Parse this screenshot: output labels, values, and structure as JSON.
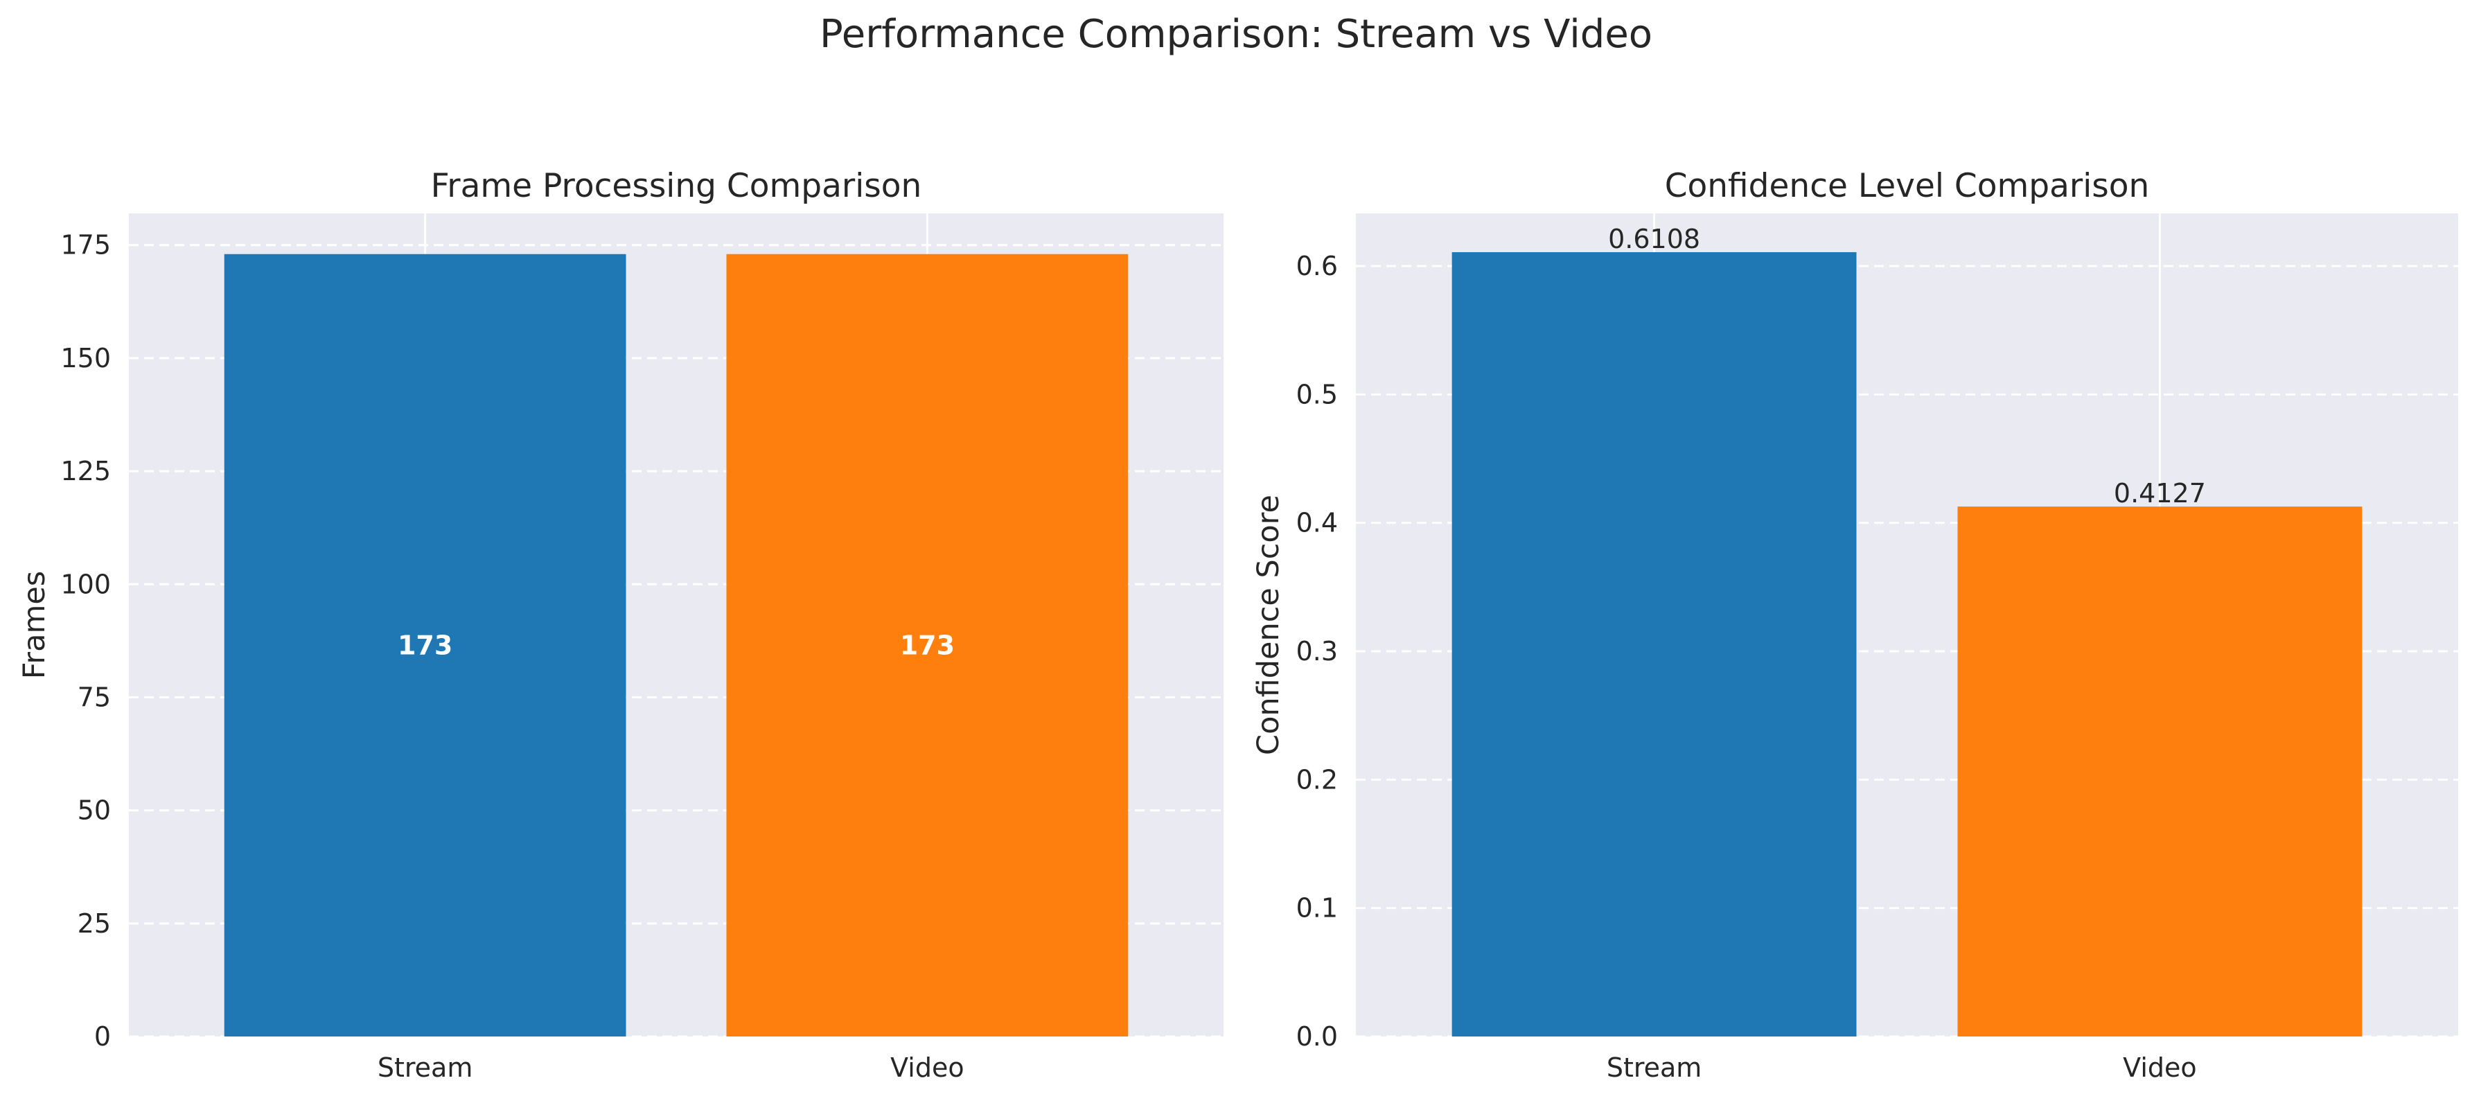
{
  "suptitle": "Performance Comparison: Stream vs Video",
  "chart_data": [
    {
      "type": "bar",
      "title": "Frame Processing Comparison",
      "xlabel": "",
      "ylabel": "Frames",
      "categories": [
        "Stream",
        "Video"
      ],
      "values": [
        173,
        173
      ],
      "value_labels": [
        "173",
        "173"
      ],
      "value_label_position": "inside-center",
      "colors": [
        "#1f77b4",
        "#ff7f0e"
      ],
      "ylim": [
        0,
        182
      ],
      "yticks": [
        0,
        25,
        50,
        75,
        100,
        125,
        150,
        175
      ],
      "ytick_labels": [
        "0",
        "25",
        "50",
        "75",
        "100",
        "125",
        "150",
        "175"
      ],
      "grid": true,
      "grid_style": "dashed",
      "background": "#eaeaf2"
    },
    {
      "type": "bar",
      "title": "Confidence Level Comparison",
      "xlabel": "",
      "ylabel": "Confidence Score",
      "categories": [
        "Stream",
        "Video"
      ],
      "values": [
        0.6108,
        0.4127
      ],
      "value_labels": [
        "0.6108",
        "0.4127"
      ],
      "value_label_position": "above",
      "colors": [
        "#1f77b4",
        "#ff7f0e"
      ],
      "ylim": [
        0,
        0.641
      ],
      "yticks": [
        0.0,
        0.1,
        0.2,
        0.3,
        0.4,
        0.5,
        0.6
      ],
      "ytick_labels": [
        "0.0",
        "0.1",
        "0.2",
        "0.3",
        "0.4",
        "0.5",
        "0.6"
      ],
      "grid": true,
      "grid_style": "dashed",
      "background": "#eaeaf2"
    }
  ]
}
